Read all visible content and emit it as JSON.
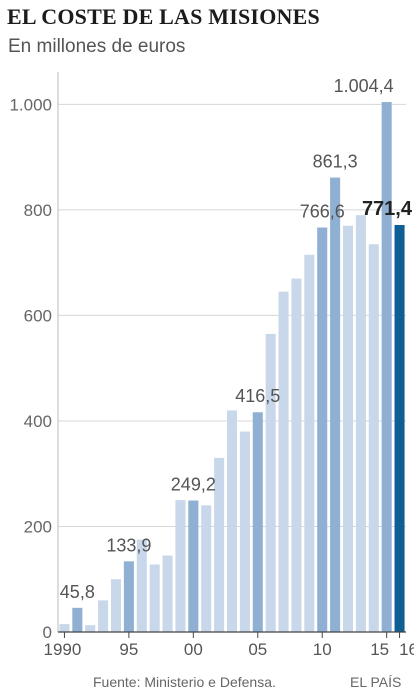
{
  "chart_data": {
    "type": "bar",
    "title": "EL COSTE DE LAS MISIONES",
    "subtitle": "En millones de euros",
    "xlabel": "",
    "ylabel": "",
    "ylim": [
      0,
      1050
    ],
    "yticks": [
      0,
      200,
      400,
      600,
      800,
      1000
    ],
    "ytick_labels": [
      "0",
      "200",
      "400",
      "600",
      "800",
      "1.000"
    ],
    "x": [
      1990,
      1991,
      1992,
      1993,
      1994,
      1995,
      1996,
      1997,
      1998,
      1999,
      2000,
      2001,
      2002,
      2003,
      2004,
      2005,
      2006,
      2007,
      2008,
      2009,
      2010,
      2011,
      2012,
      2013,
      2014,
      2015,
      2016
    ],
    "xtick_labels": [
      "1990",
      "95",
      "00",
      "05",
      "10",
      "15",
      "16"
    ],
    "xtick_positions": [
      1990,
      1995,
      2000,
      2005,
      2010,
      2015,
      2016
    ],
    "values": [
      15,
      45.8,
      13,
      60,
      100,
      133.9,
      175,
      128,
      145,
      250,
      249.2,
      240,
      330,
      420,
      380,
      416.5,
      565,
      645,
      670,
      715,
      766.6,
      861.3,
      770,
      790,
      735,
      1004.4,
      771.4
    ],
    "grid": true,
    "labeled_points": [
      {
        "x": 1991,
        "label": "45,8"
      },
      {
        "x": 1995,
        "label": "133,9"
      },
      {
        "x": 2000,
        "label": "249,2"
      },
      {
        "x": 2005,
        "label": "416,5"
      },
      {
        "x": 2010,
        "label": "766,6"
      },
      {
        "x": 2011,
        "label": "861,3"
      },
      {
        "x": 2015,
        "label": "1.004,4"
      },
      {
        "x": 2016,
        "label": "771,4"
      }
    ],
    "colors": {
      "light": "#c8d8ea",
      "medium": "#8fb0d2",
      "highlight": "#0f5f95",
      "grid": "#d7d7d7",
      "axis": "#444444",
      "label": "#555555",
      "label_highlight": "#222222"
    }
  },
  "footer": {
    "source": "Fuente: Ministerio e Defensa.",
    "credit": "EL PAÍS"
  }
}
